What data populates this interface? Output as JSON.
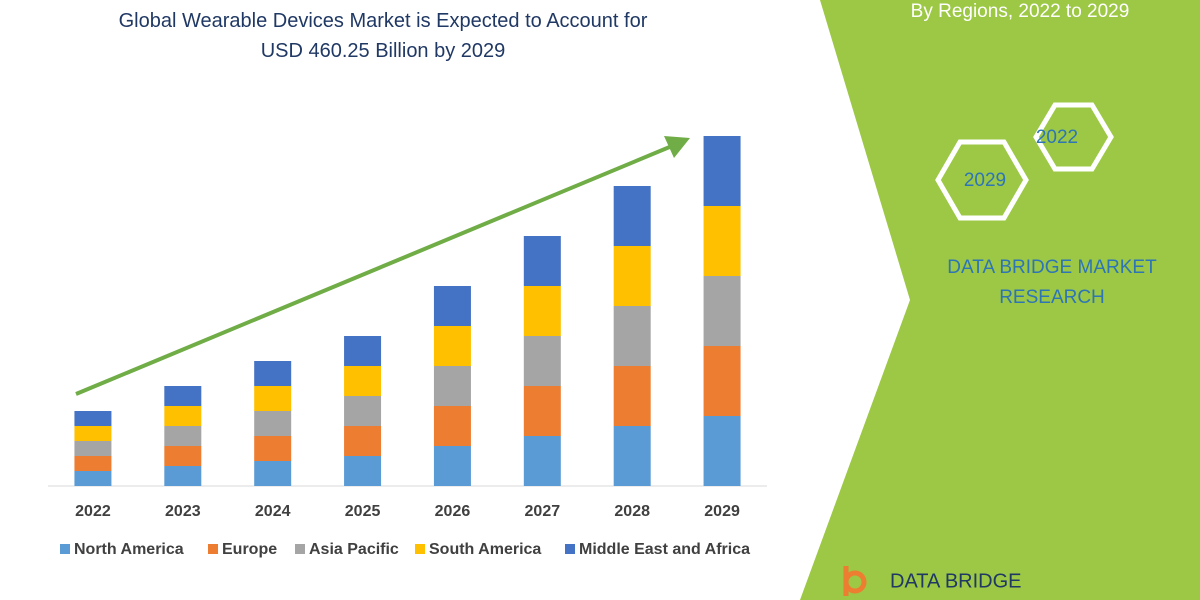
{
  "chart_data": {
    "type": "stacked_bar",
    "title": "Global Wearable Devices Market is Expected to Account for USD 460.25 Billion by 2029",
    "categories": [
      "2022",
      "2023",
      "2024",
      "2025",
      "2026",
      "2027",
      "2028",
      "2029"
    ],
    "series": [
      {
        "name": "North America",
        "color": "#5b9bd5",
        "values": [
          15,
          20,
          25,
          30,
          40,
          50,
          60,
          70
        ]
      },
      {
        "name": "Europe",
        "color": "#ed7d31",
        "values": [
          15,
          20,
          25,
          30,
          40,
          50,
          60,
          70
        ]
      },
      {
        "name": "Asia Pacific",
        "color": "#a5a5a5",
        "values": [
          15,
          20,
          25,
          30,
          40,
          50,
          60,
          70
        ]
      },
      {
        "name": "South America",
        "color": "#ffc000",
        "values": [
          15,
          20,
          25,
          30,
          40,
          50,
          60,
          70
        ]
      },
      {
        "name": "Middle East and Africa",
        "color": "#4472c4",
        "values": [
          15,
          20,
          25,
          30,
          40,
          50,
          60,
          70
        ]
      }
    ],
    "ylim": [
      0,
      360
    ],
    "legend": "bottom"
  },
  "side_panel": {
    "heading": "By Regions, 2022 to 2029",
    "hexagons": [
      "2022",
      "2029"
    ],
    "brand": "DATA BRIDGE MARKET RESEARCH",
    "logo": "DATA BRIDGE"
  }
}
